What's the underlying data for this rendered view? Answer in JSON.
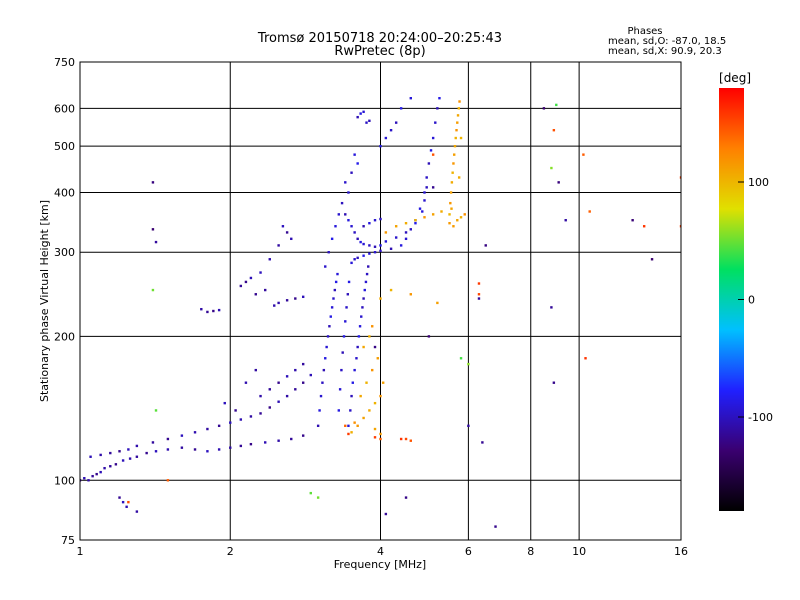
{
  "chart_data": {
    "type": "scatter",
    "title": "Tromsø 20150718 20:24:00–20:25:43",
    "subtitle": "RwPretec (8p)",
    "info": {
      "heading": "Phases",
      "line1": "mean, sd,O: -87.0, 18.5",
      "line2": "mean, sd,X:  90.9, 20.3"
    },
    "xlabel": "Frequency [MHz]",
    "ylabel": "Stationary phase Virtual Height [km]",
    "xscale": "log",
    "yscale": "log",
    "xlim": [
      1,
      16
    ],
    "ylim": [
      75,
      750
    ],
    "xticks": [
      1,
      2,
      4,
      6,
      8,
      10,
      16
    ],
    "yticks": [
      75,
      100,
      200,
      300,
      400,
      500,
      600,
      750
    ],
    "grid": true,
    "colorbar": {
      "label": "deg",
      "range": [
        -180,
        180
      ],
      "ticks": [
        100,
        0,
        -100
      ],
      "colors": [
        "#000000",
        "#3a0070",
        "#2020ff",
        "#00c0ff",
        "#00e060",
        "#e0e000",
        "#ff8000",
        "#ff0000"
      ]
    },
    "series": [
      {
        "phase": -110,
        "points": [
          [
            1.0,
            100
          ],
          [
            1.02,
            101
          ],
          [
            1.04,
            100
          ],
          [
            1.06,
            102
          ],
          [
            1.08,
            103
          ],
          [
            1.1,
            104
          ],
          [
            1.12,
            106
          ],
          [
            1.15,
            107
          ],
          [
            1.18,
            108
          ],
          [
            1.22,
            110
          ],
          [
            1.26,
            111
          ],
          [
            1.3,
            112
          ],
          [
            1.36,
            114
          ],
          [
            1.42,
            115
          ],
          [
            1.5,
            116
          ],
          [
            1.6,
            117
          ],
          [
            1.7,
            116
          ],
          [
            1.8,
            115
          ],
          [
            1.9,
            116
          ],
          [
            2.0,
            117
          ],
          [
            2.1,
            118
          ],
          [
            2.2,
            119
          ],
          [
            2.35,
            120
          ],
          [
            2.5,
            121
          ],
          [
            2.65,
            122
          ],
          [
            2.8,
            124
          ],
          [
            1.05,
            112
          ],
          [
            1.1,
            113
          ],
          [
            1.15,
            114
          ],
          [
            1.2,
            115
          ],
          [
            1.25,
            116
          ],
          [
            1.3,
            118
          ],
          [
            1.4,
            120
          ],
          [
            1.5,
            122
          ],
          [
            1.6,
            124
          ],
          [
            1.7,
            126
          ],
          [
            1.8,
            128
          ],
          [
            1.9,
            130
          ],
          [
            2.0,
            132
          ],
          [
            2.1,
            134
          ],
          [
            2.2,
            136
          ],
          [
            2.3,
            138
          ],
          [
            2.4,
            142
          ],
          [
            2.5,
            146
          ],
          [
            2.6,
            150
          ],
          [
            2.7,
            155
          ],
          [
            2.8,
            160
          ],
          [
            2.9,
            166
          ],
          [
            2.3,
            150
          ],
          [
            2.4,
            155
          ],
          [
            2.5,
            160
          ],
          [
            2.6,
            165
          ],
          [
            2.7,
            170
          ],
          [
            2.8,
            175
          ],
          [
            2.05,
            140
          ],
          [
            1.95,
            145
          ],
          [
            2.15,
            160
          ],
          [
            2.25,
            170
          ],
          [
            1.2,
            92
          ],
          [
            1.22,
            90
          ],
          [
            1.24,
            88
          ],
          [
            1.3,
            86
          ],
          [
            1.8,
            225
          ],
          [
            1.85,
            226
          ],
          [
            1.9,
            227
          ],
          [
            1.75,
            228
          ],
          [
            2.1,
            255
          ],
          [
            2.15,
            260
          ],
          [
            2.2,
            265
          ],
          [
            2.5,
            235
          ],
          [
            2.6,
            238
          ],
          [
            2.7,
            240
          ],
          [
            2.8,
            242
          ],
          [
            2.45,
            232
          ],
          [
            2.35,
            250
          ],
          [
            2.25,
            245
          ],
          [
            2.3,
            272
          ],
          [
            2.4,
            290
          ],
          [
            2.5,
            310
          ],
          [
            2.6,
            330
          ],
          [
            2.55,
            340
          ],
          [
            2.65,
            320
          ]
        ]
      },
      {
        "phase": -95,
        "points": [
          [
            3.0,
            130
          ],
          [
            3.02,
            140
          ],
          [
            3.04,
            150
          ],
          [
            3.06,
            160
          ],
          [
            3.08,
            170
          ],
          [
            3.1,
            180
          ],
          [
            3.12,
            190
          ],
          [
            3.14,
            200
          ],
          [
            3.16,
            210
          ],
          [
            3.18,
            220
          ],
          [
            3.2,
            230
          ],
          [
            3.22,
            240
          ],
          [
            3.24,
            250
          ],
          [
            3.26,
            260
          ],
          [
            3.28,
            270
          ],
          [
            3.1,
            280
          ],
          [
            3.15,
            300
          ],
          [
            3.2,
            320
          ],
          [
            3.25,
            340
          ],
          [
            3.3,
            360
          ],
          [
            3.35,
            380
          ],
          [
            3.4,
            360
          ],
          [
            3.45,
            350
          ],
          [
            3.5,
            340
          ],
          [
            3.55,
            330
          ],
          [
            3.6,
            320
          ],
          [
            3.65,
            315
          ],
          [
            3.7,
            312
          ],
          [
            3.8,
            310
          ],
          [
            3.9,
            308
          ],
          [
            4.0,
            310
          ],
          [
            3.45,
            130
          ],
          [
            3.48,
            140
          ],
          [
            3.5,
            150
          ],
          [
            3.52,
            160
          ],
          [
            3.55,
            170
          ],
          [
            3.58,
            180
          ],
          [
            3.6,
            190
          ],
          [
            3.62,
            200
          ],
          [
            3.64,
            210
          ],
          [
            3.66,
            220
          ],
          [
            3.68,
            230
          ],
          [
            3.7,
            240
          ],
          [
            3.72,
            250
          ],
          [
            3.74,
            260
          ],
          [
            3.76,
            270
          ],
          [
            3.78,
            280
          ],
          [
            3.3,
            140
          ],
          [
            3.32,
            155
          ],
          [
            3.34,
            170
          ],
          [
            3.36,
            185
          ],
          [
            3.38,
            200
          ],
          [
            3.4,
            215
          ],
          [
            3.42,
            230
          ],
          [
            3.44,
            245
          ],
          [
            3.46,
            260
          ],
          [
            3.5,
            285
          ],
          [
            3.55,
            290
          ],
          [
            3.6,
            292
          ],
          [
            3.7,
            295
          ],
          [
            3.8,
            298
          ],
          [
            3.9,
            300
          ],
          [
            4.0,
            302
          ],
          [
            4.2,
            305
          ],
          [
            4.4,
            310
          ],
          [
            4.5,
            320
          ],
          [
            4.6,
            335
          ],
          [
            4.7,
            350
          ],
          [
            4.8,
            370
          ],
          [
            4.9,
            400
          ],
          [
            4.95,
            430
          ],
          [
            5.0,
            460
          ],
          [
            5.05,
            490
          ],
          [
            5.1,
            520
          ],
          [
            5.15,
            560
          ],
          [
            5.2,
            600
          ],
          [
            5.25,
            630
          ],
          [
            4.1,
            316
          ],
          [
            4.3,
            322
          ],
          [
            4.5,
            330
          ],
          [
            4.7,
            345
          ],
          [
            4.85,
            365
          ],
          [
            4.9,
            385
          ],
          [
            4.95,
            410
          ],
          [
            3.7,
            340
          ],
          [
            3.8,
            345
          ],
          [
            3.9,
            350
          ],
          [
            4.0,
            352
          ],
          [
            3.6,
            575
          ],
          [
            3.65,
            585
          ],
          [
            3.7,
            590
          ],
          [
            3.75,
            560
          ],
          [
            3.8,
            565
          ],
          [
            4.0,
            500
          ],
          [
            4.1,
            520
          ],
          [
            4.2,
            540
          ],
          [
            4.3,
            560
          ],
          [
            4.4,
            600
          ],
          [
            4.6,
            630
          ],
          [
            3.4,
            420
          ],
          [
            3.5,
            440
          ],
          [
            3.6,
            460
          ],
          [
            3.55,
            480
          ],
          [
            3.45,
            400
          ]
        ]
      },
      {
        "phase": 110,
        "points": [
          [
            5.5,
            360
          ],
          [
            5.52,
            380
          ],
          [
            5.54,
            400
          ],
          [
            5.56,
            420
          ],
          [
            5.58,
            440
          ],
          [
            5.6,
            460
          ],
          [
            5.62,
            480
          ],
          [
            5.64,
            500
          ],
          [
            5.66,
            520
          ],
          [
            5.68,
            540
          ],
          [
            5.7,
            560
          ],
          [
            5.72,
            580
          ],
          [
            5.74,
            600
          ],
          [
            5.76,
            620
          ],
          [
            5.6,
            340
          ],
          [
            5.7,
            350
          ],
          [
            5.8,
            355
          ],
          [
            5.9,
            360
          ],
          [
            5.5,
            345
          ],
          [
            5.55,
            370
          ],
          [
            5.75,
            430
          ],
          [
            5.8,
            520
          ],
          [
            3.6,
            130
          ],
          [
            3.7,
            135
          ],
          [
            3.8,
            140
          ],
          [
            3.9,
            145
          ],
          [
            4.0,
            150
          ],
          [
            4.05,
            160
          ],
          [
            3.65,
            150
          ],
          [
            3.75,
            160
          ],
          [
            3.85,
            170
          ],
          [
            3.95,
            180
          ],
          [
            3.7,
            190
          ],
          [
            3.8,
            200
          ],
          [
            3.85,
            210
          ],
          [
            4.0,
            125
          ],
          [
            3.9,
            128
          ],
          [
            3.5,
            126
          ],
          [
            3.55,
            132
          ],
          [
            4.1,
            330
          ],
          [
            4.3,
            340
          ],
          [
            4.5,
            345
          ],
          [
            4.7,
            350
          ],
          [
            4.9,
            355
          ],
          [
            5.1,
            360
          ],
          [
            5.3,
            365
          ],
          [
            4.2,
            250
          ],
          [
            4.6,
            245
          ],
          [
            5.2,
            235
          ],
          [
            4.0,
            240
          ]
        ]
      },
      {
        "phase": 150,
        "points": [
          [
            3.4,
            130
          ],
          [
            3.45,
            125
          ],
          [
            4.5,
            122
          ],
          [
            4.6,
            121
          ],
          [
            4.0,
            122
          ],
          [
            6.3,
            258
          ],
          [
            6.3,
            245
          ],
          [
            5.1,
            480
          ],
          [
            10.5,
            365
          ],
          [
            13.5,
            340
          ],
          [
            16.0,
            430
          ],
          [
            8.9,
            540
          ],
          [
            10.2,
            480
          ],
          [
            10.3,
            180
          ],
          [
            16.0,
            340
          ],
          [
            1.25,
            90
          ],
          [
            1.5,
            100
          ],
          [
            4.4,
            122
          ],
          [
            3.9,
            123
          ]
        ]
      },
      {
        "phase": 50,
        "points": [
          [
            9.0,
            610
          ],
          [
            8.8,
            450
          ],
          [
            1.4,
            250
          ],
          [
            1.42,
            140
          ],
          [
            5.8,
            180
          ],
          [
            6.0,
            175
          ],
          [
            3.0,
            92
          ],
          [
            2.9,
            94
          ]
        ]
      },
      {
        "phase": -120,
        "points": [
          [
            8.5,
            600
          ],
          [
            8.8,
            230
          ],
          [
            8.9,
            160
          ],
          [
            9.1,
            420
          ],
          [
            14.0,
            290
          ],
          [
            6.3,
            240
          ],
          [
            6.8,
            80
          ],
          [
            1.4,
            420
          ],
          [
            1.4,
            335
          ],
          [
            1.42,
            315
          ],
          [
            5.1,
            410
          ],
          [
            6.5,
            310
          ],
          [
            5.0,
            200
          ],
          [
            6.0,
            130
          ],
          [
            6.4,
            120
          ],
          [
            3.9,
            190
          ],
          [
            12.8,
            350
          ],
          [
            9.4,
            350
          ],
          [
            4.1,
            85
          ],
          [
            4.5,
            92
          ]
        ]
      }
    ]
  }
}
